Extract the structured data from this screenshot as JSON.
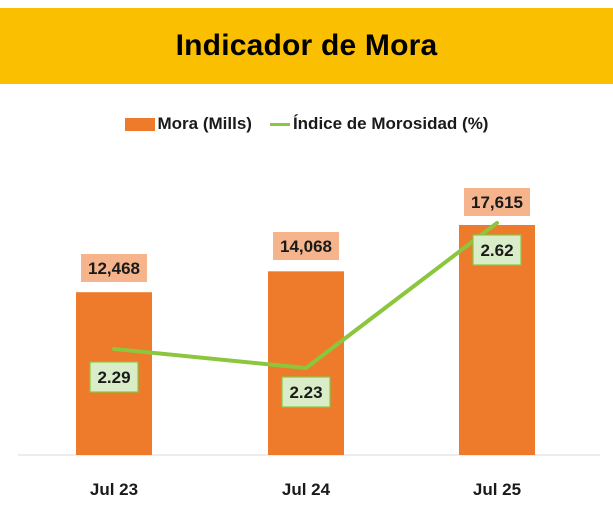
{
  "header": {
    "title": "Indicador de Mora"
  },
  "legend": {
    "bar_label": "Mora (Mills)",
    "line_label": "Índice de Morosidad (%)"
  },
  "colors": {
    "header_bg": "#F9BF00",
    "bar": "#EE7A2C",
    "bar_label_bg": "#F6B48C",
    "line": "#8CC63F",
    "line_label_bg": "#D8EDC8"
  },
  "chart_data": {
    "type": "bar",
    "categories": [
      "Jul 23",
      "Jul 24",
      "Jul 25"
    ],
    "series": [
      {
        "name": "Mora (Mills)",
        "type": "bar",
        "values": [
          12468,
          14068,
          17615
        ],
        "labels": [
          "12,468",
          "14,068",
          "17,615"
        ]
      },
      {
        "name": "Índice de Morosidad (%)",
        "type": "line",
        "values": [
          2.29,
          2.23,
          2.62
        ],
        "labels": [
          "2.29",
          "2.23",
          "2.62"
        ]
      }
    ],
    "title": "Indicador de Mora",
    "xlabel": "",
    "ylabel": "",
    "grid": false,
    "legend_position": "top"
  }
}
